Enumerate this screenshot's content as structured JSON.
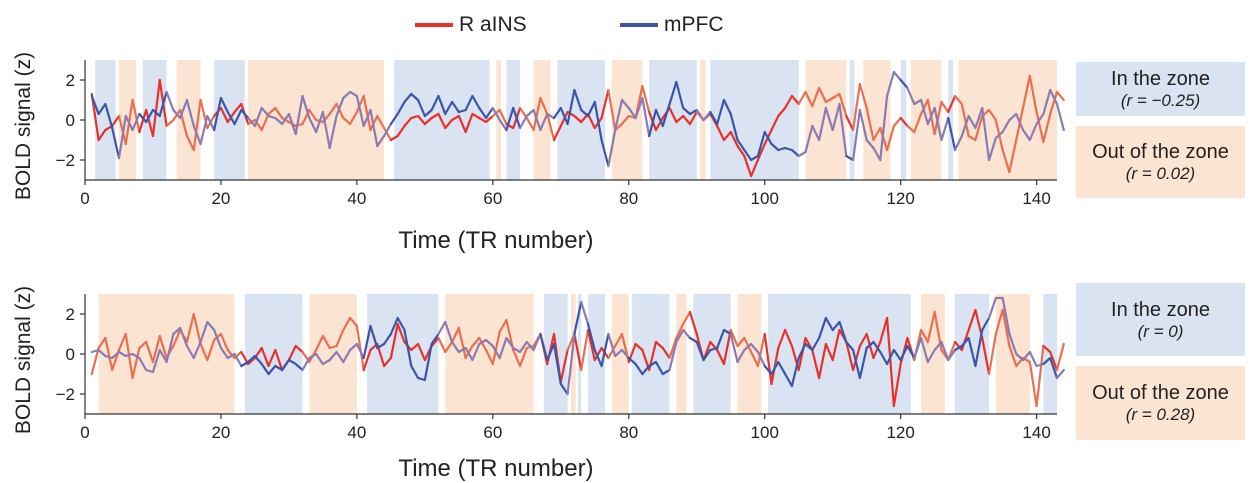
{
  "legend": {
    "items": [
      {
        "label": "R aINS",
        "color": "#e8312b"
      },
      {
        "label": "mPFC",
        "color": "#3b56a8"
      }
    ]
  },
  "colors": {
    "in_zone": "#d9e3f1",
    "out_zone": "#fbe4d2",
    "line_out_a": "#e86f4f",
    "line_out_b": "#8b7ab3",
    "line_in_a": "#e8312b",
    "line_in_b": "#3b56a8"
  },
  "zone_panels": [
    {
      "in_title": "In the zone",
      "in_r": "(r = −0.25)",
      "out_title": "Out of the zone",
      "out_r": "(r = 0.02)"
    },
    {
      "in_title": "In the zone",
      "in_r": "(r = 0)",
      "out_title": "Out of the zone",
      "out_r": "(r = 0.28)"
    }
  ],
  "chart_data": [
    {
      "type": "line",
      "xlabel": "Time (TR number)",
      "ylabel": "BOLD signal (z)",
      "xlim": [
        0,
        143
      ],
      "ylim": [
        -3,
        3
      ],
      "xticks": [
        0,
        20,
        40,
        60,
        80,
        100,
        120,
        140
      ],
      "yticks": [
        -2,
        0,
        2
      ],
      "zones": {
        "in": [
          [
            1.5,
            4.5
          ],
          [
            8.5,
            12
          ],
          [
            19,
            23.5
          ],
          [
            45.5,
            59.5
          ],
          [
            62,
            64
          ],
          [
            69.5,
            76.5
          ],
          [
            83,
            90
          ],
          [
            92,
            105
          ],
          [
            112.5,
            113.2
          ],
          [
            120,
            120.8
          ],
          [
            127,
            127.7
          ]
        ],
        "out": [
          [
            5,
            7.5
          ],
          [
            13.5,
            17
          ],
          [
            24,
            44
          ],
          [
            60.5,
            61.2
          ],
          [
            66,
            68.5
          ],
          [
            77.5,
            82
          ],
          [
            90.5,
            91.3
          ],
          [
            106,
            112
          ],
          [
            114.5,
            118.5
          ],
          [
            121.5,
            126
          ],
          [
            128.5,
            143
          ]
        ]
      },
      "series": [
        {
          "name": "R aINS",
          "values": [
            1.3,
            -1.0,
            -0.5,
            -0.3,
            0.2,
            -1.2,
            1.0,
            -0.6,
            0.5,
            -0.8,
            2.0,
            -0.3,
            0.0,
            0.5,
            -0.8,
            -1.5,
            1.0,
            -0.4,
            0.2,
            0.6,
            -0.1,
            0.4,
            0.8,
            -0.2,
            0.0,
            -0.5,
            0.3,
            0.6,
            0.1,
            -0.1,
            -0.3,
            -0.2,
            0.5,
            0.0,
            -0.1,
            0.3,
            0.8,
            0.1,
            -0.2,
            0.4,
            1.2,
            -0.5,
            0.2,
            -0.4,
            -1.0,
            -0.8,
            -0.3,
            0.1,
            0.2,
            -0.2,
            0.1,
            0.3,
            -0.4,
            0.0,
            0.2,
            -0.6,
            0.3,
            0.1,
            -0.1,
            0.2,
            0.5,
            -0.2,
            -0.4,
            0.6,
            0.1,
            -0.5,
            1.1,
            0.3,
            -1.0,
            -0.3,
            0.4,
            0.2,
            -0.1,
            0.3,
            -0.4,
            0.1,
            1.5,
            -0.5,
            -0.2,
            0.2,
            0.1,
            1.7,
            0.4,
            -0.5,
            0.1,
            0.6,
            -0.1,
            0.2,
            -0.2,
            0.4,
            0.0,
            0.3,
            -0.3,
            -1.0,
            -0.6,
            -1.3,
            -1.8,
            -2.8,
            -2.0,
            -1.2,
            -0.5,
            0.2,
            0.6,
            1.2,
            0.8,
            1.4,
            0.7,
            1.6,
            0.9,
            1.1,
            1.3,
            0.2,
            -0.5,
            1.8,
            0.6,
            -1.0,
            -0.4,
            -1.5,
            -0.3,
            0.1,
            -0.3,
            -0.6,
            0.3,
            1.0,
            -0.7,
            0.9,
            0.4,
            1.2,
            0.8,
            -0.8,
            -1.0,
            0.2,
            0.5,
            0.0,
            -1.5,
            -2.6,
            -1.0,
            0.6,
            2.2,
            0.4,
            -1.1,
            0.3,
            1.4,
            1.0
          ]
        },
        {
          "name": "mPFC",
          "values": [
            1.2,
            0.3,
            0.8,
            -0.4,
            -1.9,
            0.2,
            -0.5,
            0.3,
            -0.1,
            0.5,
            0.2,
            1.4,
            0.5,
            0.1,
            1.0,
            -0.3,
            -1.2,
            0.2,
            -0.5,
            1.1,
            0.4,
            -0.2,
            0.5,
            0.1,
            -0.3,
            0.6,
            0.2,
            0.1,
            -0.2,
            0.3,
            -0.7,
            1.2,
            0.1,
            -0.6,
            0.4,
            -1.4,
            0.2,
            1.1,
            1.4,
            1.2,
            -0.3,
            0.5,
            -1.3,
            -0.8,
            -0.2,
            0.3,
            0.9,
            1.3,
            1.0,
            0.2,
            0.5,
            1.2,
            0.3,
            0.9,
            0.4,
            0.5,
            1.2,
            0.6,
            0.1,
            0.6,
            0.0,
            -0.5,
            0.6,
            -0.4,
            0.2,
            0.5,
            -0.5,
            0.3,
            0.1,
            0.6,
            -0.2,
            1.5,
            0.5,
            0.2,
            0.9,
            -1.0,
            -2.3,
            -0.5,
            1.0,
            0.6,
            0.1,
            1.1,
            -0.8,
            0.5,
            -0.3,
            0.8,
            1.9,
            0.6,
            0.3,
            0.5,
            0.0,
            0.4,
            -0.2,
            1.0,
            0.3,
            -1.0,
            -1.5,
            -2.0,
            -1.8,
            -0.6,
            -1.2,
            -1.5,
            -1.4,
            -1.5,
            -1.8,
            -1.6,
            -0.3,
            -1.0,
            0.6,
            -0.5,
            0.8,
            -1.8,
            -2.0,
            0.5,
            -1.0,
            -1.4,
            -2.0,
            1.2,
            2.4,
            2.0,
            1.6,
            0.8,
            1.0,
            -0.2,
            0.6,
            -1.0,
            0.1,
            -1.5,
            -0.8,
            0.2,
            -0.4,
            0.6,
            -2.0,
            -0.9,
            -0.6,
            0.0,
            0.3,
            -0.5,
            -1.0,
            -0.2,
            0.3,
            1.5,
            0.8,
            -0.5
          ]
        }
      ]
    },
    {
      "type": "line",
      "xlabel": "Time (TR number)",
      "ylabel": "BOLD signal (z)",
      "xlim": [
        0,
        143
      ],
      "ylim": [
        -3,
        3
      ],
      "xticks": [
        0,
        20,
        40,
        60,
        80,
        100,
        120,
        140
      ],
      "yticks": [
        -2,
        0,
        2
      ],
      "zones": {
        "in": [
          [
            23.5,
            32
          ],
          [
            41.5,
            52
          ],
          [
            67.5,
            71
          ],
          [
            72.5,
            73
          ],
          [
            74,
            76.5
          ],
          [
            80.5,
            86
          ],
          [
            89.5,
            95
          ],
          [
            100.5,
            121.5
          ],
          [
            128,
            133
          ],
          [
            141,
            143
          ]
        ],
        "out": [
          [
            2,
            22
          ],
          [
            33,
            40
          ],
          [
            53,
            66
          ],
          [
            71.5,
            72.2
          ],
          [
            77.5,
            80
          ],
          [
            87,
            88.5
          ],
          [
            96,
            99.5
          ],
          [
            123,
            126.5
          ],
          [
            134,
            139
          ]
        ]
      },
      "series": [
        {
          "name": "R aINS",
          "values": [
            -1.0,
            0.3,
            0.8,
            -0.8,
            0.2,
            1.0,
            -1.2,
            0.3,
            0.6,
            -0.4,
            0.9,
            -0.2,
            0.4,
            1.2,
            0.6,
            2.0,
            0.5,
            -0.3,
            0.7,
            1.0,
            0.2,
            -0.2,
            0.1,
            -0.5,
            -0.2,
            0.3,
            -0.6,
            0.2,
            -0.8,
            -0.3,
            0.4,
            0.1,
            -0.4,
            0.2,
            0.9,
            0.3,
            0.4,
            1.2,
            1.8,
            1.4,
            -0.8,
            0.2,
            0.5,
            -0.6,
            -0.2,
            1.5,
            0.6,
            0.2,
            0.5,
            -0.3,
            0.4,
            0.8,
            0.1,
            0.6,
            1.3,
            -0.2,
            0.4,
            0.8,
            0.2,
            -0.5,
            1.1,
            1.7,
            0.2,
            -0.6,
            0.3,
            0.4,
            1.0,
            -0.5,
            1.0,
            -1.4,
            0.2,
            1.0,
            -0.8,
            1.2,
            -0.3,
            0.3,
            -0.2,
            0.4,
            1.0,
            -0.4,
            0.5,
            0.2,
            -0.8,
            0.6,
            0.3,
            -0.2,
            0.8,
            1.5,
            2.1,
            1.0,
            -0.3,
            0.6,
            0.2,
            -0.5,
            1.2,
            0.4,
            0.8,
            0.1,
            -0.6,
            1.0,
            -1.5,
            0.3,
            1.2,
            0.4,
            -0.8,
            0.8,
            0.2,
            -1.2,
            0.5,
            -0.3,
            1.2,
            0.6,
            -0.8,
            0.4,
            1.0,
            -0.2,
            0.6,
            1.8,
            -2.6,
            -0.5,
            0.8,
            -0.3,
            1.2,
            0.6,
            2.1,
            0.2,
            -0.3,
            0.6,
            0.2,
            1.2,
            2.2,
            0.8,
            -1.0,
            1.0,
            2.2,
            0.4,
            -0.6,
            -0.2,
            -0.4,
            -2.6,
            0.4,
            0.1,
            -0.8,
            0.5
          ]
        },
        {
          "name": "mPFC",
          "values": [
            0.1,
            0.2,
            -0.1,
            -0.2,
            0.1,
            -0.1,
            0.0,
            -0.2,
            -0.8,
            -0.9,
            0.2,
            -0.4,
            1.0,
            1.3,
            0.4,
            -0.2,
            0.6,
            1.6,
            1.2,
            0.3,
            -0.2,
            0.0,
            -0.6,
            -0.4,
            -0.1,
            -0.5,
            -1.0,
            -0.6,
            -0.8,
            -0.3,
            -0.5,
            -0.8,
            -0.2,
            0.0,
            -0.5,
            -0.3,
            0.1,
            -0.4,
            0.2,
            0.5,
            -0.2,
            1.4,
            0.3,
            0.5,
            1.0,
            1.8,
            1.2,
            -0.6,
            -1.2,
            -1.3,
            0.5,
            1.0,
            1.6,
            0.6,
            0.1,
            0.3,
            -0.3,
            0.5,
            0.7,
            0.4,
            -0.2,
            0.8,
            0.3,
            0.1,
            0.6,
            0.2,
            1.0,
            -0.3,
            0.5,
            -1.5,
            -2.0,
            1.0,
            2.6,
            1.5,
            0.2,
            -0.6,
            1.0,
            -0.1,
            0.2,
            -0.2,
            -0.5,
            -1.0,
            -0.6,
            -0.4,
            -1.0,
            -0.8,
            0.6,
            1.2,
            0.8,
            0.6,
            -0.3,
            0.2,
            0.3,
            1.2,
            1.0,
            -0.4,
            0.2,
            0.5,
            0.1,
            -0.6,
            -1.0,
            -0.4,
            -1.0,
            -1.6,
            -0.2,
            0.5,
            0.2,
            0.8,
            1.8,
            1.2,
            1.6,
            0.6,
            0.2,
            -1.2,
            0.3,
            0.6,
            0.1,
            -0.5,
            0.2,
            -0.3,
            0.4,
            -0.2,
            0.8,
            -0.4,
            0.2,
            0.6,
            -0.3,
            0.2,
            0.4,
            0.8,
            -0.6,
            1.2,
            1.8,
            2.8,
            2.8,
            1.0,
            0.0,
            -0.3,
            0.1,
            -0.6,
            -0.5,
            -0.2,
            -1.2,
            -0.8
          ]
        }
      ]
    }
  ]
}
